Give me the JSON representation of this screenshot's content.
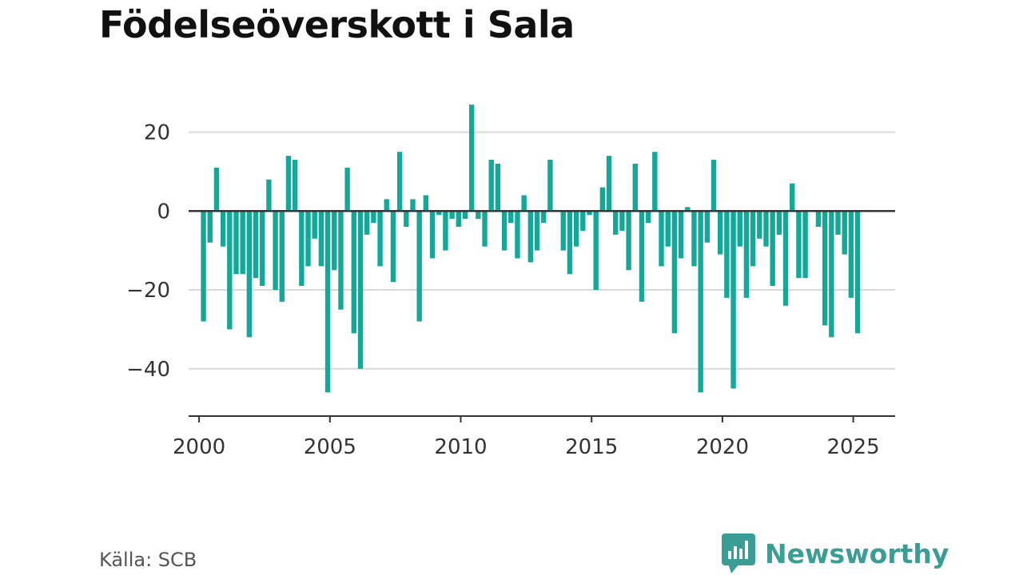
{
  "title": "Födelseöverskott i Sala",
  "source": "Källa: SCB",
  "brand": {
    "name": "Newsworthy",
    "logo_icon": "bar-chart-speech-bubble-icon"
  },
  "colors": {
    "bar": "#12a89a",
    "baseline": "#333333",
    "grid": "#d9d9d9",
    "axis": "#333333",
    "brand": "#3a9e94"
  },
  "chart_data": {
    "type": "bar",
    "title": "Födelseöverskott i Sala",
    "xlabel": "",
    "ylabel": "",
    "grid": true,
    "ylim": [
      -52,
      28
    ],
    "yticks": [
      20,
      0,
      -20,
      -40
    ],
    "ytick_labels": [
      "20",
      "0",
      "−20",
      "−40"
    ],
    "xlim": [
      1999.6,
      2026.6
    ],
    "xticks": [
      2000,
      2005,
      2010,
      2015,
      2020,
      2025
    ],
    "xtick_labels": [
      "2000",
      "2005",
      "2010",
      "2015",
      "2020",
      "2025"
    ],
    "x_start": 2000.167,
    "x_step": 0.25,
    "values": [
      -28,
      -8,
      11,
      -9,
      -30,
      -16,
      -16,
      -32,
      -17,
      -19,
      8,
      -20,
      -23,
      14,
      13,
      -19,
      -14,
      -7,
      -14,
      -46,
      -15,
      -25,
      11,
      -31,
      -40,
      -6,
      -3,
      -14,
      3,
      -18,
      15,
      -4,
      3,
      -28,
      4,
      -12,
      -1,
      -10,
      -2,
      -4,
      -2,
      27,
      -2,
      -9,
      13,
      12,
      -10,
      -3,
      -12,
      4,
      -13,
      -10,
      -3,
      13,
      0,
      -10,
      -16,
      -9,
      -5,
      -1,
      -20,
      6,
      14,
      -6,
      -5,
      -15,
      12,
      -23,
      -3,
      15,
      -14,
      -9,
      -31,
      -12,
      1,
      -14,
      -46,
      -8,
      13,
      -11,
      -22,
      -45,
      -9,
      -22,
      -14,
      -7,
      -9,
      -19,
      -6,
      -24,
      7,
      -17,
      -17,
      0,
      -4,
      -29,
      -32,
      -6,
      -11,
      -22,
      -31
    ]
  }
}
